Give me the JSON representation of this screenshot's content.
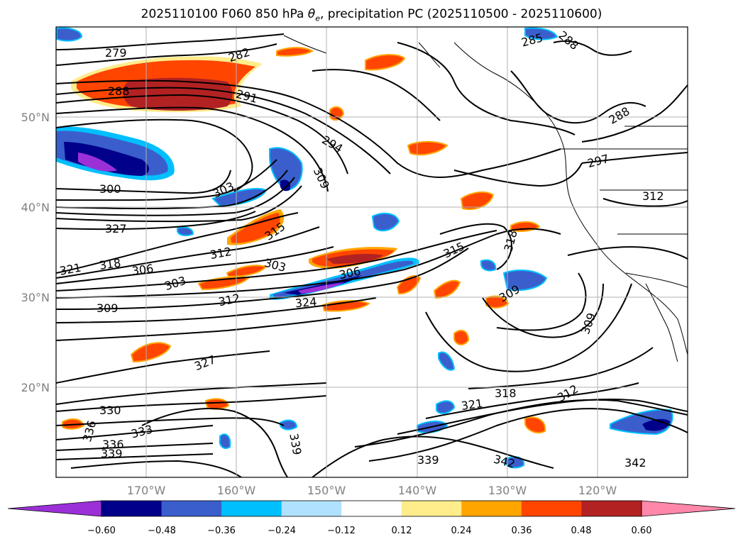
{
  "title": {
    "main": "2025110100 F060 850 hPa ",
    "theta_symbol": "θ",
    "theta_sub": "e",
    "rest": ", precipitation PC (2025110500 - 2025110600)"
  },
  "map": {
    "lat_labels": [
      "50°N",
      "40°N",
      "30°N",
      "20°N"
    ],
    "lon_labels": [
      "170°W",
      "160°W",
      "150°W",
      "140°W",
      "130°W",
      "120°W"
    ],
    "contour_labels": [
      "279",
      "282",
      "285",
      "288",
      "288",
      "288",
      "291",
      "294",
      "297",
      "300",
      "303",
      "303",
      "303",
      "306",
      "306",
      "309",
      "309",
      "309",
      "309",
      "312",
      "312",
      "312",
      "312",
      "315",
      "315",
      "318",
      "318",
      "318",
      "321",
      "321",
      "324",
      "327",
      "327",
      "330",
      "333",
      "336",
      "336",
      "339",
      "339",
      "339",
      "342",
      "342"
    ]
  },
  "colorbar": {
    "colors": [
      "#9b30d9",
      "#00008b",
      "#3a5fcd",
      "#00bfff",
      "#b0e2ff",
      "#ffffff",
      "#ffec8b",
      "#ffa500",
      "#ff4500",
      "#b22222",
      "#ff88aa"
    ],
    "tick_labels": [
      "−0.60",
      "−0.48",
      "−0.36",
      "−0.24",
      "−0.12",
      "0.12",
      "0.24",
      "0.36",
      "0.48",
      "0.60"
    ]
  }
}
